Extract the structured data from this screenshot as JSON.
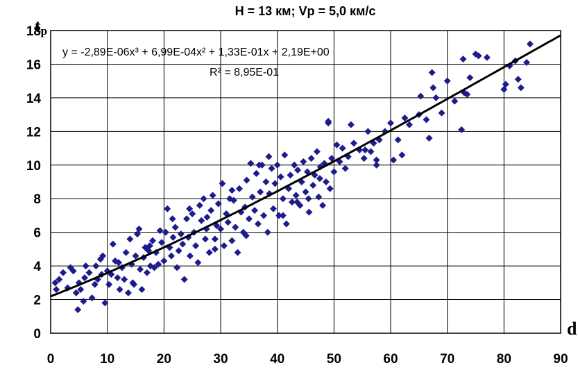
{
  "chart_data": {
    "type": "scatter",
    "title": "H = 13 км; Vp = 5,0 км/с",
    "xlabel": "d",
    "ylabel": "tp",
    "xlim": [
      0,
      90
    ],
    "ylim": [
      0,
      18
    ],
    "xticks": [
      0,
      10,
      20,
      30,
      40,
      50,
      60,
      70,
      80,
      90
    ],
    "yticks": [
      0,
      2,
      4,
      6,
      8,
      10,
      12,
      14,
      16,
      18
    ],
    "grid": true,
    "trendline": {
      "type": "polynomial-3",
      "coefficients": [
        -2.89e-06,
        0.000699,
        0.133,
        2.19
      ],
      "equation": "y = -2,89E-06x³ + 6,99E-04x² + 1,33E-01x + 2,19E+00",
      "r2_label": "R² = 8,95E-01"
    },
    "colors": {
      "points": "#1c1c8c",
      "line": "#000000",
      "grid": "#000000"
    },
    "points": [
      [
        0.8,
        3.0
      ],
      [
        1.0,
        2.6
      ],
      [
        1.5,
        3.2
      ],
      [
        2.2,
        3.6
      ],
      [
        3.0,
        2.7
      ],
      [
        3.5,
        3.9
      ],
      [
        4.0,
        3.7
      ],
      [
        4.5,
        2.4
      ],
      [
        4.8,
        1.4
      ],
      [
        5.0,
        3.0
      ],
      [
        5.3,
        2.6
      ],
      [
        5.8,
        1.9
      ],
      [
        6.0,
        3.3
      ],
      [
        6.2,
        4.0
      ],
      [
        6.8,
        3.6
      ],
      [
        7.3,
        2.1
      ],
      [
        7.8,
        2.9
      ],
      [
        8.3,
        3.2
      ],
      [
        8.8,
        4.4
      ],
      [
        9.2,
        4.6
      ],
      [
        9.6,
        1.8
      ],
      [
        10.0,
        3.7
      ],
      [
        10.3,
        2.9
      ],
      [
        10.7,
        3.5
      ],
      [
        11.0,
        5.3
      ],
      [
        11.4,
        4.3
      ],
      [
        11.8,
        3.3
      ],
      [
        12.2,
        2.6
      ],
      [
        12.6,
        3.9
      ],
      [
        13.0,
        3.2
      ],
      [
        13.3,
        4.8
      ],
      [
        13.7,
        2.4
      ],
      [
        14.0,
        5.6
      ],
      [
        14.3,
        4.1
      ],
      [
        14.7,
        2.9
      ],
      [
        15.0,
        4.6
      ],
      [
        15.3,
        5.9
      ],
      [
        15.6,
        6.2
      ],
      [
        15.8,
        3.8
      ],
      [
        16.1,
        2.6
      ],
      [
        16.4,
        4.5
      ],
      [
        16.7,
        5.1
      ],
      [
        17.0,
        3.6
      ],
      [
        17.3,
        4.9
      ],
      [
        17.6,
        4.0
      ],
      [
        18.0,
        5.5
      ],
      [
        18.3,
        3.9
      ],
      [
        18.6,
        4.8
      ],
      [
        19.0,
        4.1
      ],
      [
        19.3,
        6.1
      ],
      [
        19.6,
        5.4
      ],
      [
        20.0,
        4.3
      ],
      [
        20.3,
        6.0
      ],
      [
        20.6,
        7.4
      ],
      [
        21.0,
        5.1
      ],
      [
        21.3,
        4.6
      ],
      [
        21.6,
        5.7
      ],
      [
        22.0,
        6.3
      ],
      [
        22.3,
        3.9
      ],
      [
        22.6,
        4.9
      ],
      [
        23.0,
        5.9
      ],
      [
        23.3,
        5.3
      ],
      [
        23.6,
        3.2
      ],
      [
        24.0,
        6.8
      ],
      [
        24.3,
        5.7
      ],
      [
        24.6,
        4.6
      ],
      [
        25.0,
        7.1
      ],
      [
        25.3,
        6.0
      ],
      [
        25.6,
        5.2
      ],
      [
        26.0,
        4.2
      ],
      [
        26.3,
        7.6
      ],
      [
        26.6,
        6.7
      ],
      [
        27.0,
        8.0
      ],
      [
        27.3,
        5.6
      ],
      [
        27.6,
        6.9
      ],
      [
        28.0,
        4.8
      ],
      [
        28.3,
        7.3
      ],
      [
        28.6,
        8.2
      ],
      [
        29.0,
        5.6
      ],
      [
        29.3,
        6.4
      ],
      [
        29.6,
        7.7
      ],
      [
        30.0,
        6.2
      ],
      [
        30.3,
        8.9
      ],
      [
        30.6,
        5.2
      ],
      [
        31.0,
        7.1
      ],
      [
        31.3,
        6.6
      ],
      [
        31.6,
        8.0
      ],
      [
        32.0,
        5.5
      ],
      [
        32.3,
        7.9
      ],
      [
        32.6,
        6.3
      ],
      [
        33.0,
        4.8
      ],
      [
        33.3,
        8.6
      ],
      [
        33.6,
        7.2
      ],
      [
        34.0,
        6.0
      ],
      [
        34.3,
        7.5
      ],
      [
        34.6,
        9.1
      ],
      [
        35.0,
        6.8
      ],
      [
        35.3,
        10.1
      ],
      [
        35.6,
        8.1
      ],
      [
        36.0,
        7.3
      ],
      [
        36.3,
        9.5
      ],
      [
        36.6,
        6.5
      ],
      [
        37.0,
        8.4
      ],
      [
        37.3,
        10.0
      ],
      [
        37.6,
        7.0
      ],
      [
        38.0,
        9.0
      ],
      [
        38.3,
        6.0
      ],
      [
        38.6,
        8.3
      ],
      [
        39.0,
        9.8
      ],
      [
        39.3,
        7.4
      ],
      [
        39.6,
        8.9
      ],
      [
        40.0,
        10.0
      ],
      [
        40.3,
        7.0
      ],
      [
        40.6,
        9.3
      ],
      [
        41.0,
        8.0
      ],
      [
        41.3,
        10.6
      ],
      [
        41.6,
        6.5
      ],
      [
        42.0,
        8.6
      ],
      [
        42.3,
        9.4
      ],
      [
        42.6,
        7.8
      ],
      [
        43.0,
        10.0
      ],
      [
        43.3,
        8.2
      ],
      [
        43.6,
        9.7
      ],
      [
        44.0,
        7.6
      ],
      [
        44.3,
        9.0
      ],
      [
        44.6,
        10.2
      ],
      [
        45.0,
        8.4
      ],
      [
        45.3,
        9.6
      ],
      [
        45.6,
        7.2
      ],
      [
        46.0,
        10.4
      ],
      [
        46.3,
        8.8
      ],
      [
        46.6,
        9.4
      ],
      [
        47.0,
        10.8
      ],
      [
        47.3,
        8.1
      ],
      [
        47.6,
        9.9
      ],
      [
        48.0,
        7.6
      ],
      [
        48.3,
        10.1
      ],
      [
        48.6,
        9.0
      ],
      [
        49.0,
        12.5
      ],
      [
        49.3,
        8.6
      ],
      [
        49.6,
        10.4
      ],
      [
        50.0,
        9.6
      ],
      [
        50.5,
        11.2
      ],
      [
        51.0,
        10.2
      ],
      [
        51.5,
        11.0
      ],
      [
        52.0,
        9.8
      ],
      [
        52.5,
        10.5
      ],
      [
        53.0,
        12.4
      ],
      [
        53.5,
        11.3
      ],
      [
        54.5,
        10.9
      ],
      [
        55.3,
        10.4
      ],
      [
        56.0,
        12.0
      ],
      [
        56.5,
        10.8
      ],
      [
        57.0,
        11.3
      ],
      [
        57.5,
        10.0
      ],
      [
        58.0,
        11.5
      ],
      [
        59.0,
        12.0
      ],
      [
        60.0,
        12.5
      ],
      [
        60.5,
        10.3
      ],
      [
        61.3,
        11.5
      ],
      [
        62.0,
        10.6
      ],
      [
        62.5,
        12.8
      ],
      [
        63.3,
        12.4
      ],
      [
        65.0,
        13.0
      ],
      [
        65.3,
        14.1
      ],
      [
        66.3,
        12.7
      ],
      [
        66.8,
        11.6
      ],
      [
        67.3,
        15.5
      ],
      [
        67.5,
        14.6
      ],
      [
        68.0,
        14.0
      ],
      [
        69.0,
        13.1
      ],
      [
        70.0,
        15.0
      ],
      [
        71.3,
        13.8
      ],
      [
        72.5,
        12.1
      ],
      [
        72.8,
        16.3
      ],
      [
        73.0,
        14.3
      ],
      [
        73.5,
        14.2
      ],
      [
        74.0,
        15.2
      ],
      [
        75.0,
        16.6
      ],
      [
        75.5,
        16.5
      ],
      [
        77.0,
        16.4
      ],
      [
        80.0,
        14.5
      ],
      [
        80.3,
        14.8
      ],
      [
        81.0,
        15.9
      ],
      [
        82.0,
        16.2
      ],
      [
        82.5,
        15.1
      ],
      [
        83.0,
        14.6
      ],
      [
        84.0,
        16.1
      ],
      [
        84.6,
        17.2
      ],
      [
        8.0,
        4.0
      ],
      [
        9.0,
        3.5
      ],
      [
        12.0,
        4.2
      ],
      [
        14.5,
        3.0
      ],
      [
        17.5,
        5.2
      ],
      [
        21.5,
        6.8
      ],
      [
        24.5,
        7.4
      ],
      [
        27.5,
        6.2
      ],
      [
        29.0,
        5.0
      ],
      [
        32.0,
        8.5
      ],
      [
        34.5,
        5.8
      ],
      [
        36.8,
        10.0
      ],
      [
        38.5,
        10.5
      ],
      [
        41.0,
        7.0
      ],
      [
        43.5,
        7.8
      ],
      [
        45.5,
        8.0
      ],
      [
        47.5,
        9.2
      ],
      [
        49.0,
        12.6
      ],
      [
        55.5,
        10.9
      ],
      [
        57.5,
        10.3
      ]
    ]
  }
}
